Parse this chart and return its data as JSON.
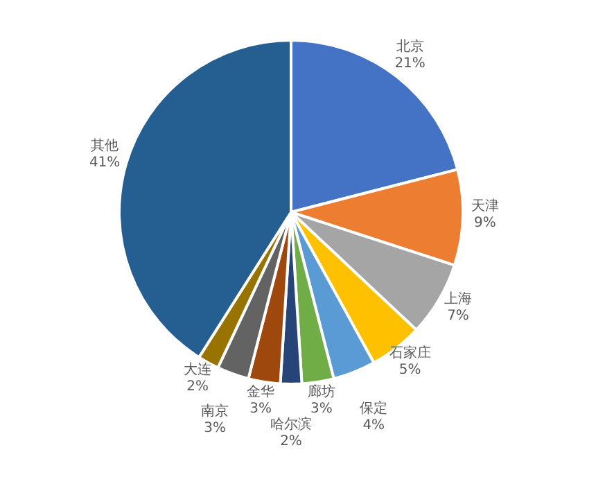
{
  "chart_data": {
    "type": "pie",
    "categories": [
      "北京",
      "天津",
      "上海",
      "石家庄",
      "保定",
      "廊坊",
      "哈尔滨",
      "金华",
      "南京",
      "大连",
      "其他"
    ],
    "values": [
      21,
      9,
      7,
      5,
      4,
      3,
      2,
      3,
      3,
      2,
      41
    ],
    "value_labels": [
      "21%",
      "9%",
      "7%",
      "5%",
      "4%",
      "3%",
      "2%",
      "3%",
      "3%",
      "2%",
      "41%"
    ],
    "colors": [
      "#4472c4",
      "#ed7d31",
      "#a5a5a5",
      "#ffc000",
      "#5b9bd5",
      "#70ad47",
      "#264478",
      "#9e480e",
      "#636363",
      "#997300",
      "#255e91"
    ]
  }
}
